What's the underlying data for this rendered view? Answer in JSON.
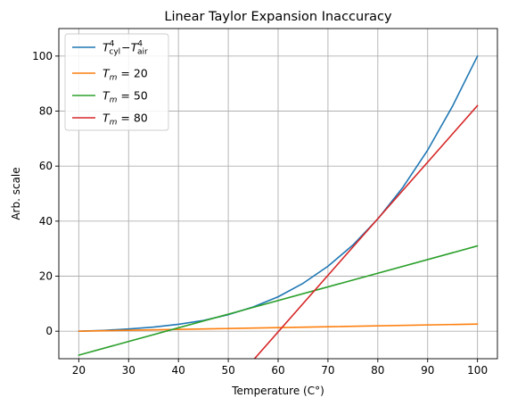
{
  "chart_data": {
    "type": "line",
    "title": "Linear Taylor Expansion Inaccuracy",
    "xlabel": "Temperature (C°)",
    "ylabel": "Arb. scale",
    "xlim": [
      16,
      104
    ],
    "ylim": [
      -10,
      110
    ],
    "grid": true,
    "legend_position": "top-left",
    "x_ticks": [
      20,
      30,
      40,
      50,
      60,
      70,
      80,
      90,
      100
    ],
    "y_ticks": [
      0,
      20,
      40,
      60,
      80,
      100
    ],
    "series": [
      {
        "name": "T_cyl^4 − T_air^4",
        "legend": {
          "var": "T",
          "sup1": "4",
          "sub1": "cyl",
          "op": "−",
          "sup2": "4",
          "sub2": "air"
        },
        "color": "#1f77b4",
        "x": [
          20,
          25,
          30,
          35,
          40,
          45,
          50,
          55,
          60,
          65,
          70,
          75,
          80,
          85,
          90,
          95,
          100
        ],
        "y": [
          0,
          0.3,
          0.8,
          1.5,
          2.5,
          3.9,
          6.0,
          8.8,
          12.5,
          17.4,
          23.6,
          31.3,
          40.8,
          52.2,
          65.8,
          81.8,
          100
        ]
      },
      {
        "name": "T_m = 20",
        "legend": {
          "var": "T",
          "sub": "m",
          "rest": " = 20"
        },
        "color": "#ff7f0e",
        "x": [
          20,
          100
        ],
        "y": [
          0,
          2.6
        ]
      },
      {
        "name": "T_m = 50",
        "legend": {
          "var": "T",
          "sub": "m",
          "rest": " = 50"
        },
        "color": "#2ca02c",
        "x": [
          20,
          100
        ],
        "y": [
          -8.7,
          31
        ]
      },
      {
        "name": "T_m = 80",
        "legend": {
          "var": "T",
          "sub": "m",
          "rest": " = 80"
        },
        "color": "#d62728",
        "x": [
          54,
          100
        ],
        "y": [
          -12.6,
          82
        ]
      }
    ]
  }
}
